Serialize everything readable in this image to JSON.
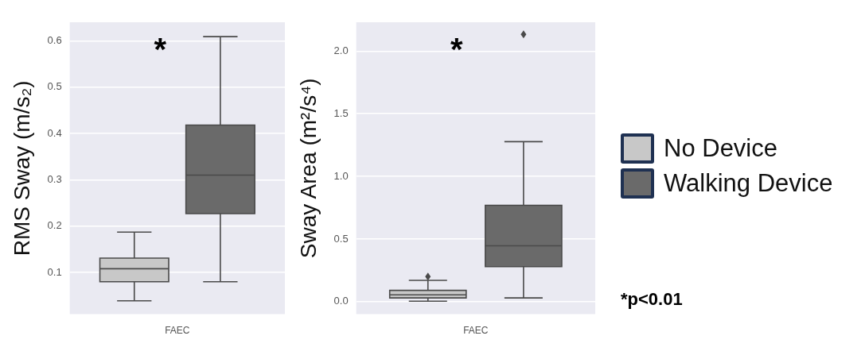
{
  "chart_data": [
    {
      "type": "box",
      "ylabel": "RMS Sway (m/s₂)",
      "categories": [
        "FAEC"
      ],
      "ylim": [
        0.01,
        0.64
      ],
      "yticks": [
        0.1,
        0.2,
        0.3,
        0.4,
        0.5,
        0.6
      ],
      "grid": "y",
      "legend": false,
      "annotations": [
        "*"
      ],
      "series": [
        {
          "color": "#c8c8c8",
          "boxes": [
            {
              "low": 0.039,
              "q1": 0.08,
              "median": 0.108,
              "q3": 0.131,
              "high": 0.187
            }
          ]
        },
        {
          "color": "#6a6a6a",
          "boxes": [
            {
              "low": 0.08,
              "q1": 0.227,
              "median": 0.31,
              "q3": 0.418,
              "high": 0.609
            }
          ]
        }
      ]
    },
    {
      "type": "box",
      "ylabel": "Sway Area (m²/s⁴)",
      "categories": [
        "FAEC"
      ],
      "ylim": [
        -0.1,
        2.23
      ],
      "yticks": [
        {
          "value": 0,
          "label": "0.0"
        },
        0.5,
        {
          "value": 1,
          "label": "1.0"
        },
        1.5,
        {
          "value": 2,
          "label": "2.0"
        }
      ],
      "grid": "y",
      "legend": "right",
      "annotations": [
        "*",
        "*p<0.01"
      ],
      "series": [
        {
          "name": "No Device",
          "color": "#c8c8c8",
          "boxes": [
            {
              "low": 0.004,
              "q1": 0.03,
              "median": 0.054,
              "q3": 0.09,
              "high": 0.17,
              "outliers": [
                0.2
              ]
            }
          ]
        },
        {
          "name": "Walking Device",
          "color": "#6a6a6a",
          "boxes": [
            {
              "low": 0.03,
              "q1": 0.279,
              "median": 0.446,
              "q3": 0.769,
              "high": 1.277,
              "outliers": [
                2.133
              ]
            }
          ]
        }
      ]
    }
  ]
}
